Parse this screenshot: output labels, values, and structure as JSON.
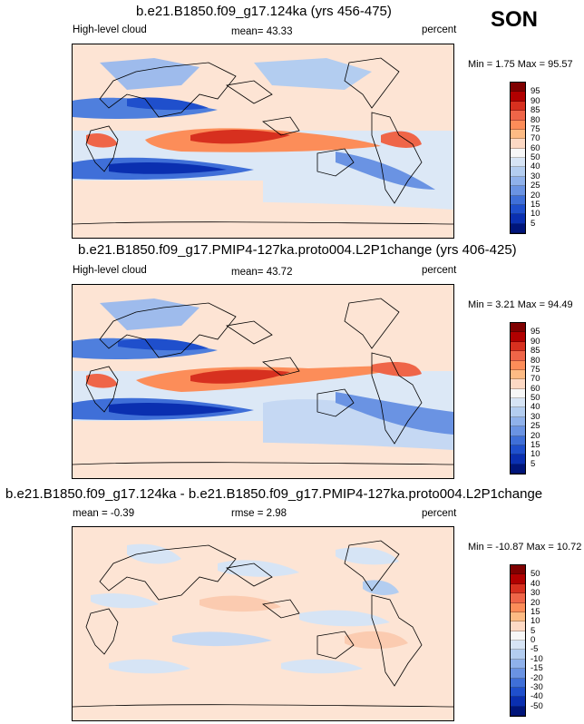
{
  "season": "SON",
  "panels": [
    {
      "title": "b.e21.B1850.f09_g17.124ka (yrs 456-475)",
      "left_label": "High-level cloud",
      "stat_label": "mean=",
      "stat_value": "43.33",
      "units": "percent",
      "min_label": "Min =",
      "min_value": "1.75",
      "max_label": "Max =",
      "max_value": "95.57",
      "colorbar_levels": [
        "95",
        "90",
        "85",
        "80",
        "75",
        "70",
        "60",
        "50",
        "40",
        "30",
        "25",
        "20",
        "15",
        "10",
        "5"
      ],
      "colorbar_colors": [
        "#7f0000",
        "#b10000",
        "#d7301f",
        "#ef6548",
        "#fc8d59",
        "#fdbb84",
        "#fdd9c4",
        "#f7f7f7",
        "#d6e4f5",
        "#b3cdf0",
        "#8fb1eb",
        "#6a93e3",
        "#3f6fd8",
        "#1f4fcc",
        "#0a2fb0",
        "#00157a"
      ]
    },
    {
      "title": "b.e21.B1850.f09_g17.PMIP4-127ka.proto004.L2P1change (yrs 406-425)",
      "left_label": "High-level cloud",
      "stat_label": "mean=",
      "stat_value": "43.72",
      "units": "percent",
      "min_label": "Min =",
      "min_value": "3.21",
      "max_label": "Max =",
      "max_value": "94.49",
      "colorbar_levels": [
        "95",
        "90",
        "85",
        "80",
        "75",
        "70",
        "60",
        "50",
        "40",
        "30",
        "25",
        "20",
        "15",
        "10",
        "5"
      ],
      "colorbar_colors": [
        "#7f0000",
        "#b10000",
        "#d7301f",
        "#ef6548",
        "#fc8d59",
        "#fdbb84",
        "#fdd9c4",
        "#f7f7f7",
        "#d6e4f5",
        "#b3cdf0",
        "#8fb1eb",
        "#6a93e3",
        "#3f6fd8",
        "#1f4fcc",
        "#0a2fb0",
        "#00157a"
      ]
    },
    {
      "title": "b.e21.B1850.f09_g17.124ka - b.e21.B1850.f09_g17.PMIP4-127ka.proto004.L2P1change",
      "left_label": "mean =",
      "left_value": "-0.39",
      "stat_label": "rmse =",
      "stat_value": "2.98",
      "units": "percent",
      "min_label": "Min =",
      "min_value": "-10.87",
      "max_label": "Max =",
      "max_value": "10.72",
      "colorbar_levels": [
        "50",
        "40",
        "30",
        "20",
        "15",
        "10",
        "5",
        "0",
        "-5",
        "-10",
        "-15",
        "-20",
        "-30",
        "-40",
        "-50"
      ],
      "colorbar_colors": [
        "#7f0000",
        "#b10000",
        "#d7301f",
        "#ef6548",
        "#fc8d59",
        "#fdbb84",
        "#fdd9c4",
        "#f7f7f7",
        "#d6e4f5",
        "#b3cdf0",
        "#8fb1eb",
        "#6a93e3",
        "#3f6fd8",
        "#1f4fcc",
        "#0a2fb0",
        "#00157a"
      ]
    }
  ]
}
